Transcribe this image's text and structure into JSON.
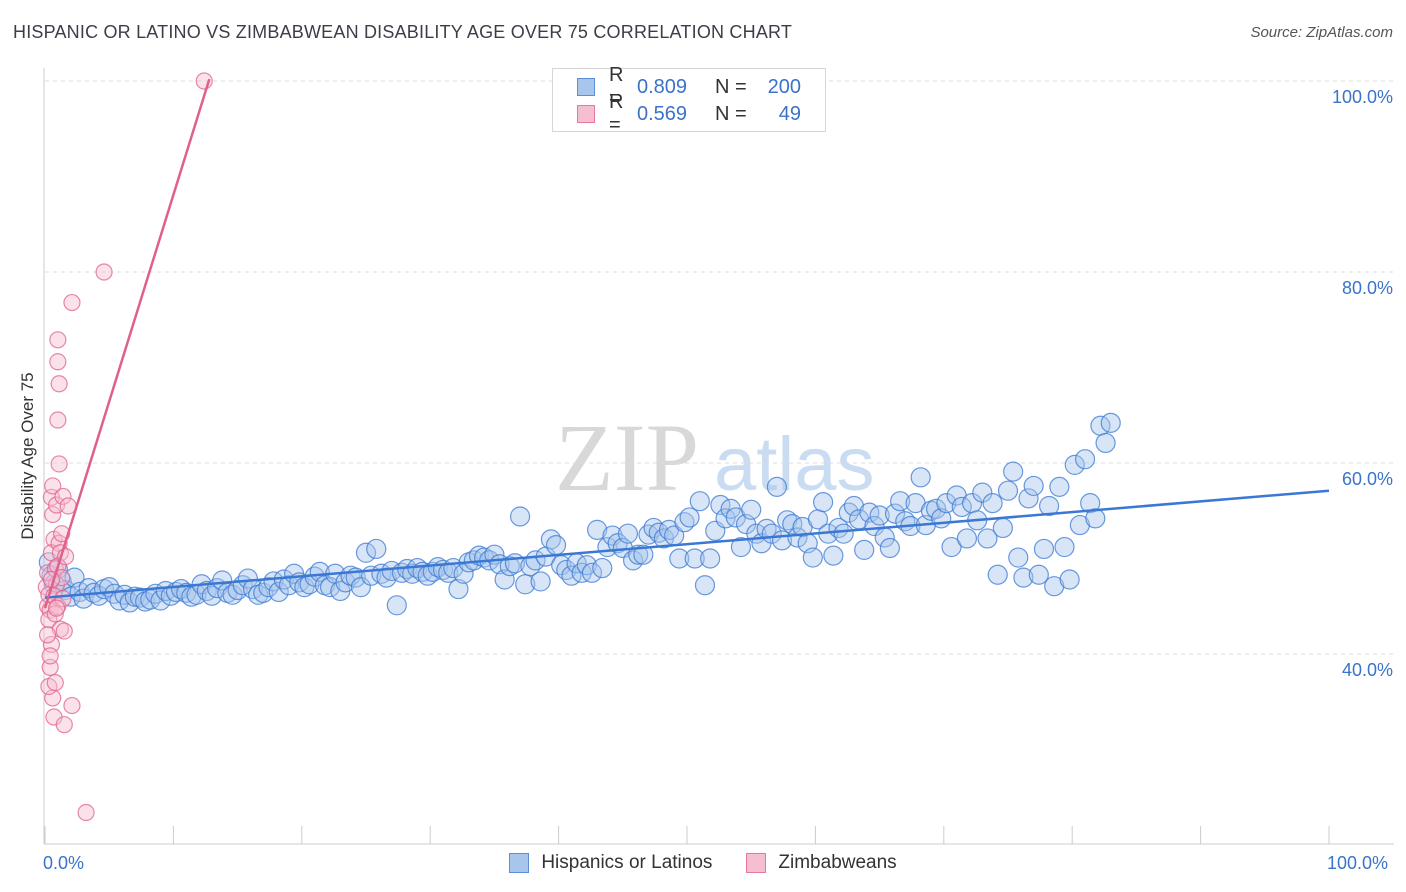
{
  "title": "HISPANIC OR LATINO VS ZIMBABWEAN DISABILITY AGE OVER 75 CORRELATION CHART",
  "source": "Source: ZipAtlas.com",
  "watermark": {
    "zip": "ZIP",
    "atlas": "atlas"
  },
  "legend": {
    "rows": [
      {
        "r_label": "R =",
        "r_value": "0.809",
        "n_label": "N =",
        "n_value": "200",
        "color": "#5b8fd6",
        "fill": "#a8c6ec"
      },
      {
        "r_label": "R =",
        "r_value": "0.569",
        "n_label": "N =",
        "n_value": "49",
        "color": "#e8789f",
        "fill": "#f6bfd1"
      }
    ]
  },
  "bottom_legend": [
    "Hispanics or Latinos",
    "Zimbabweans"
  ],
  "y_axis_label": "Disability Age Over 75",
  "x_tick_left": "0.0%",
  "x_tick_right": "100.0%",
  "y_ticks": [
    "100.0%",
    "80.0%",
    "60.0%",
    "40.0%"
  ],
  "chart_data": {
    "type": "scatter",
    "title": "HISPANIC OR LATINO VS ZIMBABWEAN DISABILITY AGE OVER 75 CORRELATION CHART",
    "xlabel": "",
    "ylabel": "Disability Age Over 75",
    "xlim": [
      0,
      100
    ],
    "ylim": [
      20,
      101
    ],
    "y_gridlines": [
      40,
      60,
      80,
      100
    ],
    "series": [
      {
        "name": "Hispanics or Latinos",
        "color": "#3a78d4",
        "fill": "#a8c6ec",
        "r": 0.809,
        "n": 200,
        "trend": {
          "x": [
            0,
            100
          ],
          "y": [
            45.9,
            57.1
          ]
        },
        "points": [
          [
            0.3,
            49.6
          ],
          [
            0.5,
            48.2
          ],
          [
            0.7,
            47.3
          ],
          [
            1.0,
            48.9
          ],
          [
            1.3,
            47.6
          ],
          [
            1.6,
            46.7
          ],
          [
            2.0,
            46.0
          ],
          [
            2.3,
            48.0
          ],
          [
            2.7,
            46.5
          ],
          [
            3.0,
            45.8
          ],
          [
            3.4,
            46.9
          ],
          [
            3.8,
            46.4
          ],
          [
            4.2,
            46.1
          ],
          [
            4.6,
            46.8
          ],
          [
            5.0,
            47.0
          ],
          [
            5.4,
            46.3
          ],
          [
            5.8,
            45.6
          ],
          [
            6.2,
            46.2
          ],
          [
            6.6,
            45.4
          ],
          [
            7.0,
            46.0
          ],
          [
            7.4,
            45.9
          ],
          [
            7.8,
            45.5
          ],
          [
            8.2,
            45.7
          ],
          [
            8.6,
            46.3
          ],
          [
            9.0,
            45.6
          ],
          [
            9.4,
            46.6
          ],
          [
            9.8,
            46.1
          ],
          [
            10.2,
            46.5
          ],
          [
            10.6,
            46.8
          ],
          [
            11.0,
            46.4
          ],
          [
            11.4,
            46.0
          ],
          [
            11.8,
            46.2
          ],
          [
            12.2,
            47.3
          ],
          [
            12.6,
            46.6
          ],
          [
            13.0,
            46.1
          ],
          [
            13.4,
            46.9
          ],
          [
            13.8,
            47.7
          ],
          [
            14.2,
            46.4
          ],
          [
            14.6,
            46.2
          ],
          [
            15.0,
            46.7
          ],
          [
            15.4,
            47.2
          ],
          [
            15.8,
            47.9
          ],
          [
            16.2,
            46.8
          ],
          [
            16.6,
            46.2
          ],
          [
            17.0,
            46.4
          ],
          [
            17.4,
            47.0
          ],
          [
            17.8,
            47.6
          ],
          [
            18.2,
            46.5
          ],
          [
            18.6,
            47.8
          ],
          [
            19.0,
            47.2
          ],
          [
            19.4,
            48.4
          ],
          [
            19.8,
            47.5
          ],
          [
            20.2,
            47.0
          ],
          [
            20.6,
            47.3
          ],
          [
            21.0,
            48.1
          ],
          [
            21.4,
            48.6
          ],
          [
            21.8,
            47.2
          ],
          [
            22.2,
            47.0
          ],
          [
            22.6,
            48.4
          ],
          [
            23.0,
            46.6
          ],
          [
            23.4,
            47.5
          ],
          [
            23.8,
            48.2
          ],
          [
            24.2,
            48.0
          ],
          [
            24.6,
            47.0
          ],
          [
            25.0,
            50.6
          ],
          [
            25.4,
            48.2
          ],
          [
            25.8,
            51.0
          ],
          [
            26.2,
            48.4
          ],
          [
            26.6,
            48.0
          ],
          [
            27.0,
            48.7
          ],
          [
            27.4,
            45.1
          ],
          [
            27.8,
            48.5
          ],
          [
            28.2,
            48.9
          ],
          [
            28.6,
            48.4
          ],
          [
            29.0,
            49.0
          ],
          [
            29.4,
            48.6
          ],
          [
            29.8,
            48.2
          ],
          [
            30.2,
            48.6
          ],
          [
            30.6,
            49.1
          ],
          [
            31.0,
            48.8
          ],
          [
            31.4,
            48.5
          ],
          [
            31.8,
            49.0
          ],
          [
            32.2,
            46.8
          ],
          [
            32.6,
            48.4
          ],
          [
            33.0,
            49.6
          ],
          [
            33.4,
            49.8
          ],
          [
            33.8,
            50.3
          ],
          [
            34.2,
            50.1
          ],
          [
            34.6,
            49.8
          ],
          [
            35.0,
            50.4
          ],
          [
            35.4,
            49.4
          ],
          [
            35.8,
            47.8
          ],
          [
            36.2,
            49.2
          ],
          [
            36.6,
            49.5
          ],
          [
            37.0,
            54.4
          ],
          [
            37.4,
            47.3
          ],
          [
            37.8,
            49.2
          ],
          [
            38.2,
            49.8
          ],
          [
            38.6,
            47.6
          ],
          [
            39.0,
            50.2
          ],
          [
            39.4,
            52.0
          ],
          [
            39.8,
            51.4
          ],
          [
            40.2,
            49.3
          ],
          [
            40.6,
            48.8
          ],
          [
            41.0,
            48.2
          ],
          [
            41.4,
            49.5
          ],
          [
            41.8,
            48.5
          ],
          [
            42.2,
            49.3
          ],
          [
            42.6,
            48.5
          ],
          [
            43.0,
            53.0
          ],
          [
            43.4,
            49.0
          ],
          [
            43.8,
            51.2
          ],
          [
            44.2,
            52.4
          ],
          [
            44.6,
            51.6
          ],
          [
            45.0,
            51.1
          ],
          [
            45.4,
            52.6
          ],
          [
            45.8,
            49.8
          ],
          [
            46.2,
            50.4
          ],
          [
            46.6,
            50.4
          ],
          [
            47.0,
            52.5
          ],
          [
            47.4,
            53.2
          ],
          [
            47.8,
            52.7
          ],
          [
            48.2,
            52.1
          ],
          [
            48.6,
            53.0
          ],
          [
            49.0,
            52.4
          ],
          [
            49.4,
            50.0
          ],
          [
            49.8,
            53.8
          ],
          [
            50.2,
            54.3
          ],
          [
            50.6,
            50.0
          ],
          [
            51.0,
            56.0
          ],
          [
            51.4,
            47.2
          ],
          [
            51.8,
            50.0
          ],
          [
            52.2,
            52.9
          ],
          [
            52.6,
            55.6
          ],
          [
            53.0,
            54.2
          ],
          [
            53.4,
            55.2
          ],
          [
            53.8,
            54.3
          ],
          [
            54.2,
            51.2
          ],
          [
            54.6,
            53.6
          ],
          [
            55.0,
            55.1
          ],
          [
            55.4,
            52.6
          ],
          [
            55.8,
            51.6
          ],
          [
            56.2,
            53.1
          ],
          [
            56.6,
            52.6
          ],
          [
            57.0,
            57.5
          ],
          [
            57.4,
            51.9
          ],
          [
            57.8,
            54.0
          ],
          [
            58.2,
            53.6
          ],
          [
            58.6,
            52.2
          ],
          [
            59.0,
            53.3
          ],
          [
            59.4,
            51.6
          ],
          [
            59.8,
            50.1
          ],
          [
            60.2,
            54.1
          ],
          [
            60.6,
            55.9
          ],
          [
            61.0,
            52.6
          ],
          [
            61.4,
            50.3
          ],
          [
            61.8,
            53.2
          ],
          [
            62.2,
            52.6
          ],
          [
            62.6,
            54.8
          ],
          [
            63.0,
            55.5
          ],
          [
            63.4,
            54.1
          ],
          [
            63.8,
            50.9
          ],
          [
            64.2,
            54.8
          ],
          [
            64.6,
            53.4
          ],
          [
            65.0,
            54.5
          ],
          [
            65.4,
            52.2
          ],
          [
            65.8,
            51.1
          ],
          [
            66.2,
            54.7
          ],
          [
            66.6,
            56.0
          ],
          [
            67.0,
            53.9
          ],
          [
            67.4,
            53.4
          ],
          [
            67.8,
            55.8
          ],
          [
            68.2,
            58.5
          ],
          [
            68.6,
            53.5
          ],
          [
            69.0,
            55.0
          ],
          [
            69.4,
            55.2
          ],
          [
            69.8,
            54.2
          ],
          [
            70.2,
            55.8
          ],
          [
            70.6,
            51.2
          ],
          [
            71.0,
            56.6
          ],
          [
            71.4,
            55.4
          ],
          [
            71.8,
            52.1
          ],
          [
            72.2,
            55.8
          ],
          [
            72.6,
            54.0
          ],
          [
            73.0,
            56.9
          ],
          [
            73.4,
            52.1
          ],
          [
            73.8,
            55.8
          ],
          [
            74.2,
            48.3
          ],
          [
            74.6,
            53.2
          ],
          [
            75.0,
            57.1
          ],
          [
            75.4,
            59.1
          ],
          [
            75.8,
            50.1
          ],
          [
            76.2,
            48.0
          ],
          [
            76.6,
            56.3
          ],
          [
            77.0,
            57.6
          ],
          [
            77.4,
            48.3
          ],
          [
            77.8,
            51.0
          ],
          [
            78.2,
            55.5
          ],
          [
            78.6,
            47.1
          ],
          [
            79.0,
            57.5
          ],
          [
            79.4,
            51.2
          ],
          [
            79.8,
            47.8
          ],
          [
            80.2,
            59.8
          ],
          [
            80.6,
            53.5
          ],
          [
            81.0,
            60.4
          ],
          [
            81.4,
            55.8
          ],
          [
            81.8,
            54.2
          ],
          [
            82.2,
            63.9
          ],
          [
            82.6,
            62.1
          ],
          [
            83.0,
            64.2
          ]
        ]
      },
      {
        "name": "Zimbabweans",
        "color": "#e0608c",
        "fill": "#f6bfd1",
        "r": 0.569,
        "n": 49,
        "trend": {
          "x": [
            0,
            12.8
          ],
          "y": [
            44.8,
            100.2
          ]
        },
        "points": [
          [
            0.1,
            47.0
          ],
          [
            0.2,
            45.0
          ],
          [
            0.3,
            46.2
          ],
          [
            0.2,
            48.5
          ],
          [
            0.4,
            44.6
          ],
          [
            0.3,
            43.6
          ],
          [
            0.5,
            41.0
          ],
          [
            0.4,
            38.6
          ],
          [
            0.6,
            35.4
          ],
          [
            0.5,
            56.4
          ],
          [
            0.6,
            54.6
          ],
          [
            0.7,
            52.0
          ],
          [
            0.5,
            50.6
          ],
          [
            0.8,
            48.9
          ],
          [
            0.9,
            47.3
          ],
          [
            0.7,
            46.1
          ],
          [
            1.0,
            45.0
          ],
          [
            0.8,
            44.2
          ],
          [
            0.6,
            57.6
          ],
          [
            0.9,
            55.6
          ],
          [
            1.1,
            51.6
          ],
          [
            1.2,
            50.6
          ],
          [
            1.0,
            49.2
          ],
          [
            1.3,
            48.0
          ],
          [
            1.4,
            45.8
          ],
          [
            1.2,
            42.6
          ],
          [
            1.5,
            42.4
          ],
          [
            1.6,
            50.2
          ],
          [
            1.4,
            56.5
          ],
          [
            1.1,
            59.9
          ],
          [
            1.0,
            64.5
          ],
          [
            1.1,
            68.3
          ],
          [
            1.0,
            70.6
          ],
          [
            1.0,
            72.9
          ],
          [
            2.1,
            76.8
          ],
          [
            4.6,
            80.0
          ],
          [
            12.4,
            100.0
          ],
          [
            0.3,
            36.6
          ],
          [
            0.7,
            33.4
          ],
          [
            1.5,
            32.6
          ],
          [
            2.1,
            34.6
          ],
          [
            3.2,
            23.4
          ],
          [
            0.2,
            42.0
          ],
          [
            0.4,
            39.8
          ],
          [
            0.8,
            37.0
          ],
          [
            1.3,
            52.6
          ],
          [
            1.8,
            55.5
          ],
          [
            0.9,
            44.8
          ],
          [
            0.5,
            47.8
          ]
        ]
      }
    ]
  }
}
